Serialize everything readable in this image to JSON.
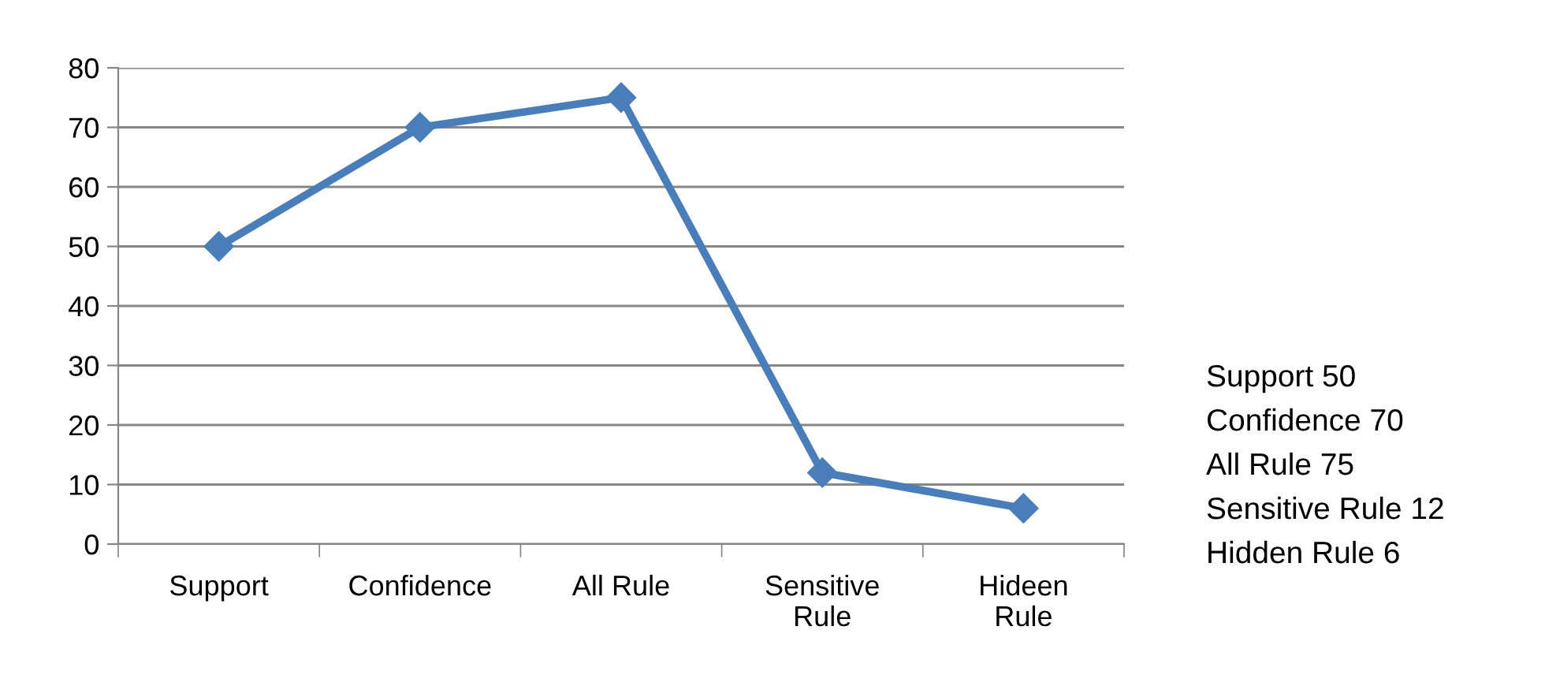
{
  "chart_data": {
    "type": "line",
    "categories": [
      "Support",
      "Confidence",
      "All Rule",
      "Sensitive\nRule",
      "Hideen\nRule"
    ],
    "series": [
      {
        "color": "#4a7ebb",
        "values": [
          50,
          70,
          75,
          12,
          6
        ]
      }
    ],
    "ylim": [
      0,
      80
    ],
    "yticks": [
      0,
      10,
      20,
      30,
      40,
      50,
      60,
      70,
      80
    ],
    "grid": "y",
    "legend": false,
    "marker": "diamond",
    "line_style": "solid",
    "annotations": [
      "Support 50",
      "Confidence 70",
      "All Rule 75",
      "Sensitive Rule 12",
      "Hidden Rule 6"
    ]
  }
}
